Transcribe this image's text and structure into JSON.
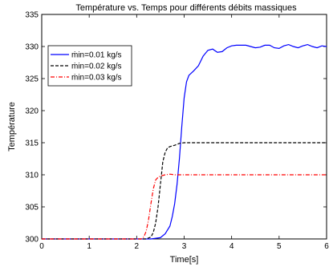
{
  "chart_data": {
    "type": "line",
    "title": "Température vs. Temps pour différents débits massiques",
    "xlabel": "Time[s]",
    "ylabel": "Température",
    "xlim": [
      0,
      6
    ],
    "ylim": [
      300,
      335
    ],
    "xticks": [
      "0",
      "1",
      "2",
      "3",
      "4",
      "5",
      "6"
    ],
    "yticks": [
      "300",
      "305",
      "310",
      "315",
      "320",
      "325",
      "330",
      "335"
    ],
    "grid": false,
    "legend_position": "top-left",
    "series": [
      {
        "name": "ṁin=0.01 kg/s",
        "color": "#0000ff",
        "style": "solid",
        "x": [
          0,
          2.3,
          2.5,
          2.6,
          2.7,
          2.75,
          2.8,
          2.85,
          2.9,
          2.95,
          3.0,
          3.05,
          3.1,
          3.2,
          3.3,
          3.4,
          3.5,
          3.6,
          3.7,
          3.8,
          3.9,
          4.0,
          4.1,
          4.2,
          4.3,
          4.4,
          4.5,
          4.6,
          4.7,
          4.8,
          4.9,
          5.0,
          5.1,
          5.2,
          5.3,
          5.4,
          5.5,
          5.6,
          5.7,
          5.8,
          5.9,
          6.0
        ],
        "y": [
          300,
          300,
          300.2,
          300.8,
          302,
          303.5,
          305.5,
          308.5,
          312.5,
          317.5,
          322,
          324.5,
          325.5,
          326.2,
          327,
          328.5,
          329.4,
          329.6,
          329.1,
          329.2,
          329.8,
          330.1,
          330.2,
          330.2,
          330.2,
          330.0,
          329.8,
          329.9,
          330.2,
          330.2,
          329.8,
          329.7,
          330.1,
          330.3,
          330.0,
          329.8,
          330.1,
          330.3,
          330.0,
          329.8,
          330.1,
          330.0
        ]
      },
      {
        "name": "ṁin=0.02 kg/s",
        "color": "#000000",
        "style": "dashed",
        "x": [
          0,
          2.2,
          2.3,
          2.35,
          2.4,
          2.45,
          2.5,
          2.55,
          2.6,
          2.65,
          2.7,
          2.8,
          2.9,
          3.0,
          3.2,
          3.5,
          4.0,
          5.0,
          6.0
        ],
        "y": [
          300,
          300,
          300.3,
          301,
          302.5,
          305,
          308.5,
          312,
          313.5,
          314.2,
          314.4,
          314.6,
          314.9,
          315.0,
          315.0,
          315.0,
          315.0,
          315.0,
          315.0
        ]
      },
      {
        "name": "ṁin=0.03 kg/s",
        "color": "#ff0000",
        "style": "dashdot",
        "x": [
          0,
          2.1,
          2.15,
          2.2,
          2.25,
          2.3,
          2.35,
          2.4,
          2.45,
          2.5,
          2.6,
          2.7,
          2.8,
          3.0,
          4.0,
          5.0,
          6.0
        ],
        "y": [
          300,
          300,
          300.3,
          301.2,
          303,
          305.5,
          307.8,
          309.2,
          309.6,
          309.8,
          310.0,
          310.1,
          310.0,
          310.0,
          310.0,
          310.0,
          310.0
        ]
      }
    ]
  }
}
